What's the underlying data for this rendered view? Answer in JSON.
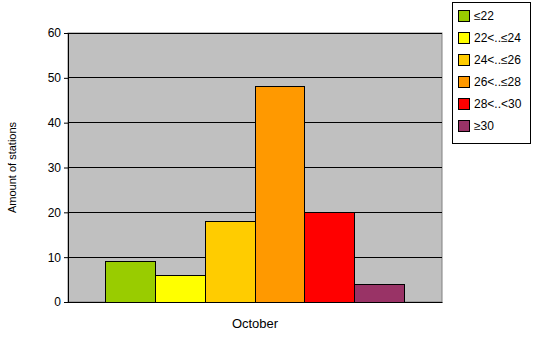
{
  "chart_data": {
    "type": "bar",
    "categories": [
      "October"
    ],
    "series": [
      {
        "name": "≤22",
        "color": "#99cc00",
        "values": [
          9
        ]
      },
      {
        "name": "22<..≤24",
        "color": "#ffff00",
        "values": [
          6
        ]
      },
      {
        "name": "24<..≤26",
        "color": "#ffcc00",
        "values": [
          18
        ]
      },
      {
        "name": "26<..≤28",
        "color": "#ff9900",
        "values": [
          48
        ]
      },
      {
        "name": "28<..<30",
        "color": "#ff0000",
        "values": [
          20
        ]
      },
      {
        "name": "≥30",
        "color": "#993366",
        "values": [
          4
        ]
      }
    ],
    "y_label": "Amount of stations",
    "ylim": [
      0,
      60
    ],
    "yticks": [
      0,
      10,
      20,
      30,
      40,
      50,
      60
    ],
    "grid": true,
    "legend": "top-right"
  }
}
